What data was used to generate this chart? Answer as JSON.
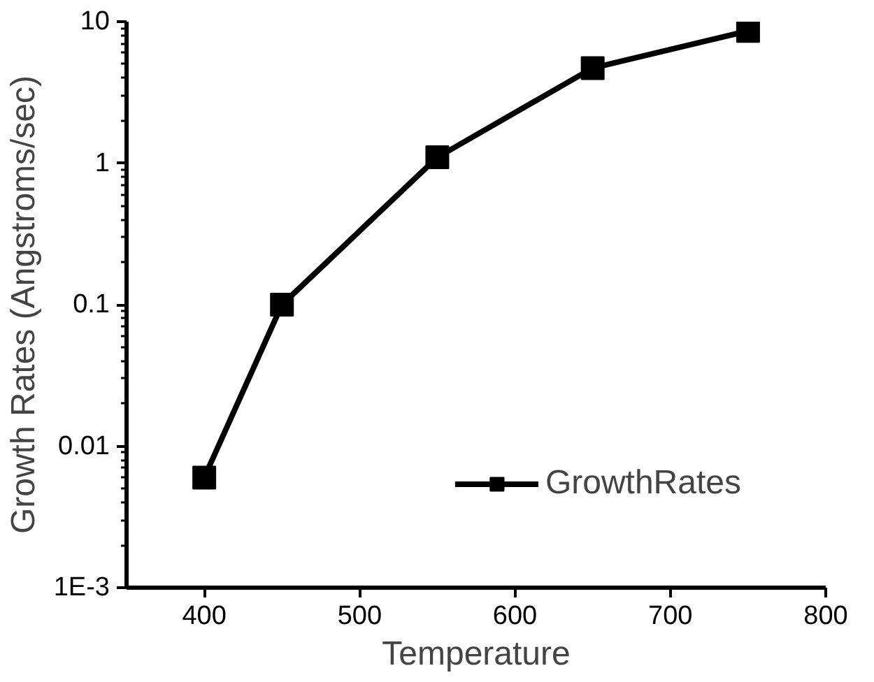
{
  "chart_data": {
    "type": "line",
    "xlabel": "Temperature",
    "ylabel": "Growth Rates (Angstroms/sec)",
    "x": [
      400,
      450,
      550,
      650,
      750
    ],
    "series": [
      {
        "name": "GrowthRates",
        "color": "#000000",
        "values": [
          0.006,
          0.1,
          1.1,
          4.7,
          8.6
        ]
      }
    ],
    "xlim": [
      350,
      800
    ],
    "xticks": [
      400,
      500,
      600,
      700,
      800
    ],
    "ylim": [
      0.001,
      10
    ],
    "yticks": [
      {
        "value": 0.001,
        "label": "1E-3"
      },
      0.01,
      0.1,
      1,
      10
    ],
    "log": "y",
    "grid": false,
    "legend": "bottom right",
    "marker": "square",
    "line_style": "solid"
  }
}
